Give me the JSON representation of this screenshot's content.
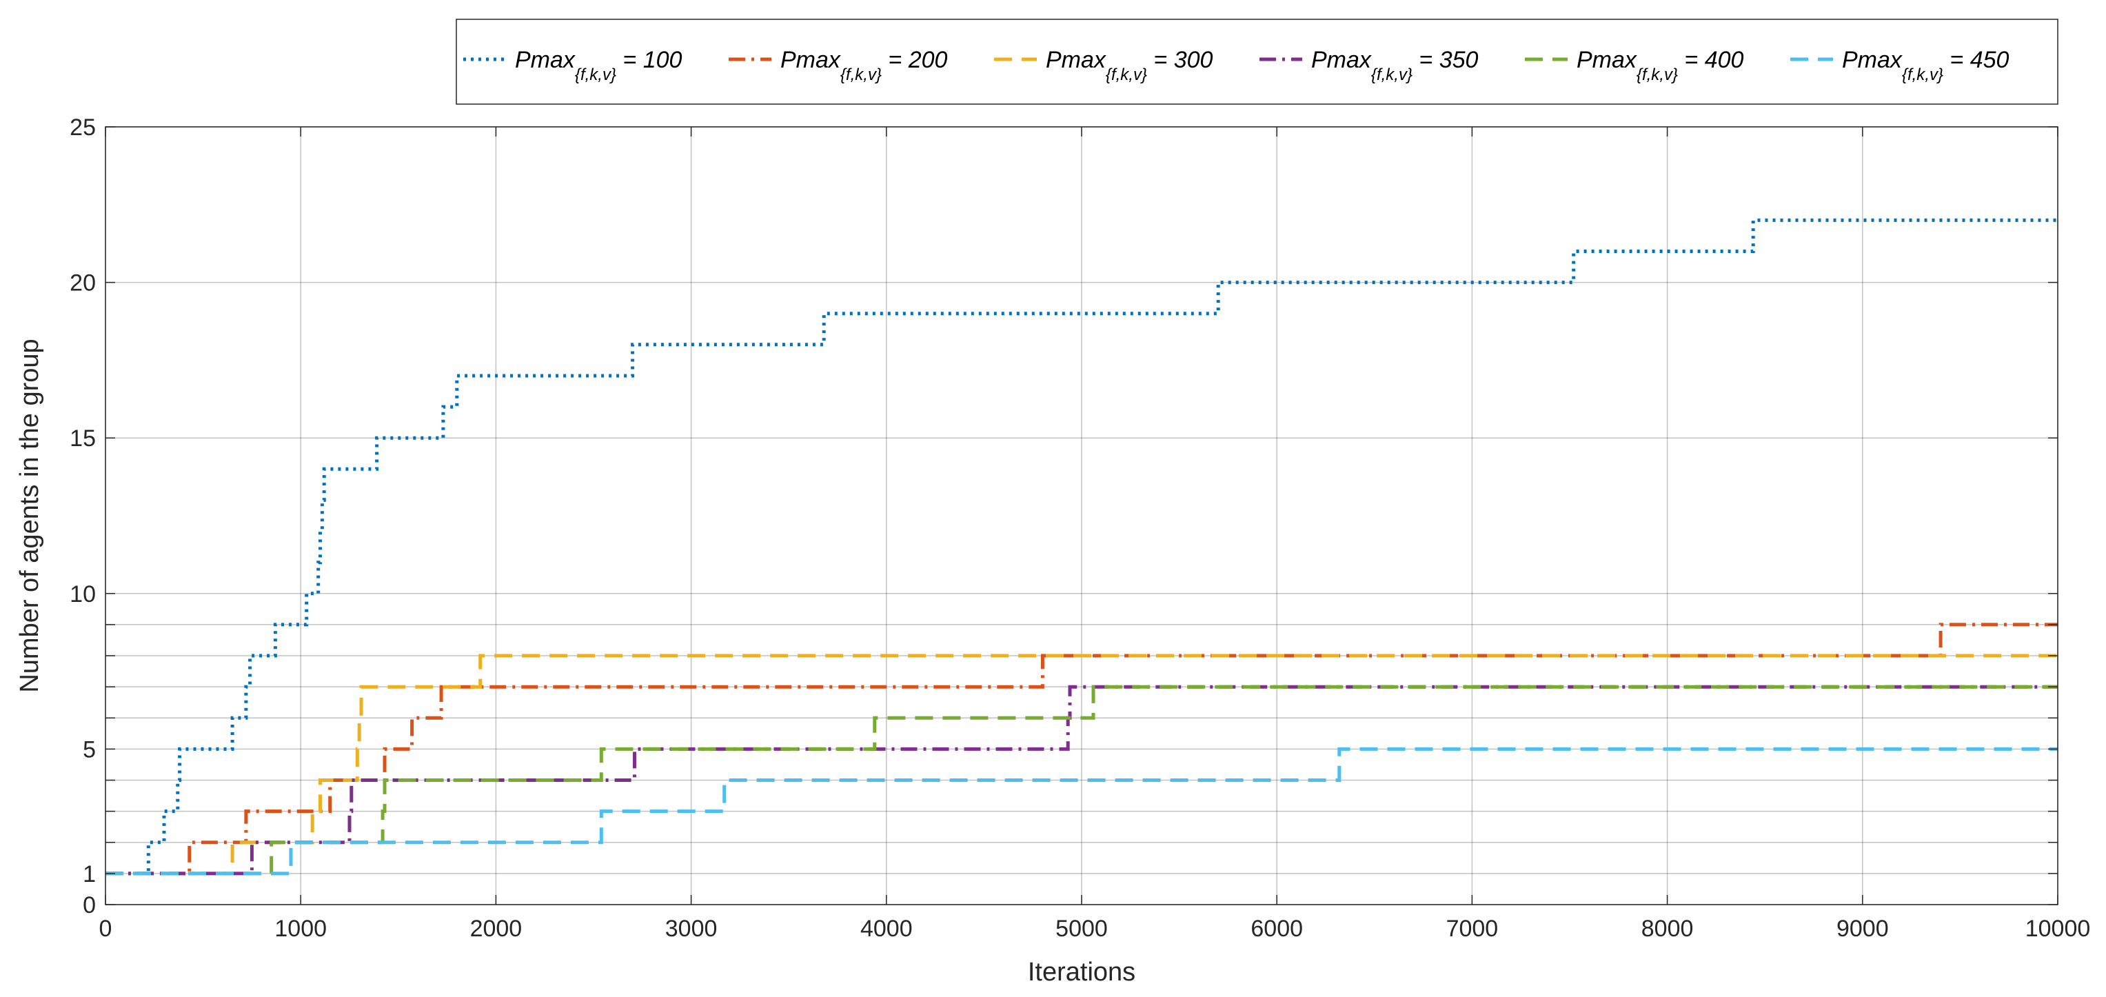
{
  "chart_data": {
    "type": "line",
    "step": true,
    "title": "",
    "xlabel": "Iterations",
    "ylabel": "Number of agents in the group",
    "xlim": [
      0,
      10000
    ],
    "ylim": [
      0,
      25
    ],
    "xticks": [
      0,
      1000,
      2000,
      3000,
      4000,
      5000,
      6000,
      7000,
      8000,
      9000,
      10000
    ],
    "xtick_labels": [
      "0",
      "1000",
      "2000",
      "3000",
      "4000",
      "5000",
      "6000",
      "7000",
      "8000",
      "9000",
      "10000"
    ],
    "yticks": [
      0,
      1,
      2,
      3,
      4,
      5,
      6,
      7,
      8,
      9,
      10,
      15,
      20,
      25
    ],
    "ytick_labels": [
      "0",
      "1",
      "",
      "",
      "",
      "5",
      "",
      "",
      "",
      "",
      "10",
      "15",
      "20",
      "25"
    ],
    "grid": true,
    "legend_position": "top-outside",
    "series": [
      {
        "name_main": "Pmax",
        "name_sub": "{f,k,v}",
        "name_value": " = 100",
        "color": "#0072BD",
        "style": "dotted",
        "points": [
          [
            0,
            1
          ],
          [
            220,
            1
          ],
          [
            220,
            2
          ],
          [
            300,
            2
          ],
          [
            300,
            3
          ],
          [
            370,
            3
          ],
          [
            370,
            4
          ],
          [
            380,
            4
          ],
          [
            380,
            5
          ],
          [
            650,
            5
          ],
          [
            650,
            6
          ],
          [
            720,
            6
          ],
          [
            720,
            7
          ],
          [
            740,
            7
          ],
          [
            740,
            8
          ],
          [
            870,
            8
          ],
          [
            870,
            9
          ],
          [
            1030,
            9
          ],
          [
            1030,
            10
          ],
          [
            1090,
            10
          ],
          [
            1090,
            11
          ],
          [
            1100,
            11
          ],
          [
            1100,
            12
          ],
          [
            1110,
            12
          ],
          [
            1110,
            13
          ],
          [
            1120,
            13
          ],
          [
            1120,
            14
          ],
          [
            1390,
            14
          ],
          [
            1390,
            15
          ],
          [
            1730,
            15
          ],
          [
            1730,
            16
          ],
          [
            1800,
            16
          ],
          [
            1800,
            17
          ],
          [
            2700,
            17
          ],
          [
            2700,
            18
          ],
          [
            3680,
            18
          ],
          [
            3680,
            19
          ],
          [
            5700,
            19
          ],
          [
            5700,
            20
          ],
          [
            7520,
            20
          ],
          [
            7520,
            21
          ],
          [
            8440,
            21
          ],
          [
            8440,
            22
          ],
          [
            10000,
            22
          ]
        ]
      },
      {
        "name_main": "Pmax",
        "name_sub": "{f,k,v}",
        "name_value": " = 200",
        "color": "#D95319",
        "style": "dashdot",
        "points": [
          [
            0,
            1
          ],
          [
            430,
            1
          ],
          [
            430,
            2
          ],
          [
            720,
            2
          ],
          [
            720,
            3
          ],
          [
            1150,
            3
          ],
          [
            1150,
            4
          ],
          [
            1430,
            4
          ],
          [
            1430,
            5
          ],
          [
            1570,
            5
          ],
          [
            1570,
            6
          ],
          [
            1720,
            6
          ],
          [
            1720,
            7
          ],
          [
            4800,
            7
          ],
          [
            4800,
            8
          ],
          [
            9400,
            8
          ],
          [
            9400,
            9
          ],
          [
            10000,
            9
          ]
        ]
      },
      {
        "name_main": "Pmax",
        "name_sub": "{f,k,v}",
        "name_value": " = 300",
        "color": "#EDB120",
        "style": "dashed",
        "points": [
          [
            0,
            1
          ],
          [
            650,
            1
          ],
          [
            650,
            2
          ],
          [
            1060,
            2
          ],
          [
            1060,
            3
          ],
          [
            1100,
            3
          ],
          [
            1100,
            4
          ],
          [
            1290,
            4
          ],
          [
            1290,
            5
          ],
          [
            1300,
            5
          ],
          [
            1300,
            6
          ],
          [
            1310,
            6
          ],
          [
            1310,
            7
          ],
          [
            1920,
            7
          ],
          [
            1920,
            8
          ],
          [
            10000,
            8
          ]
        ]
      },
      {
        "name_main": "Pmax",
        "name_sub": "{f,k,v}",
        "name_value": " = 350",
        "color": "#7E2F8E",
        "style": "dashdot",
        "points": [
          [
            0,
            1
          ],
          [
            750,
            1
          ],
          [
            750,
            2
          ],
          [
            1250,
            2
          ],
          [
            1250,
            3
          ],
          [
            1260,
            3
          ],
          [
            1260,
            4
          ],
          [
            2710,
            4
          ],
          [
            2710,
            5
          ],
          [
            4930,
            5
          ],
          [
            4930,
            6
          ],
          [
            4940,
            6
          ],
          [
            4940,
            7
          ],
          [
            10000,
            7
          ]
        ]
      },
      {
        "name_main": "Pmax",
        "name_sub": "{f,k,v}",
        "name_value": " = 400",
        "color": "#77AC30",
        "style": "dashed",
        "points": [
          [
            0,
            1
          ],
          [
            850,
            1
          ],
          [
            850,
            2
          ],
          [
            1420,
            2
          ],
          [
            1420,
            3
          ],
          [
            1430,
            3
          ],
          [
            1430,
            4
          ],
          [
            2540,
            4
          ],
          [
            2540,
            5
          ],
          [
            3940,
            5
          ],
          [
            3940,
            6
          ],
          [
            5060,
            6
          ],
          [
            5060,
            7
          ],
          [
            10000,
            7
          ]
        ]
      },
      {
        "name_main": "Pmax",
        "name_sub": "{f,k,v}",
        "name_value": " = 450",
        "color": "#4DBEEE",
        "style": "dashed",
        "points": [
          [
            0,
            1
          ],
          [
            950,
            1
          ],
          [
            950,
            2
          ],
          [
            2540,
            2
          ],
          [
            2540,
            3
          ],
          [
            3170,
            3
          ],
          [
            3170,
            4
          ],
          [
            6320,
            4
          ],
          [
            6320,
            5
          ],
          [
            10000,
            5
          ]
        ]
      }
    ]
  }
}
